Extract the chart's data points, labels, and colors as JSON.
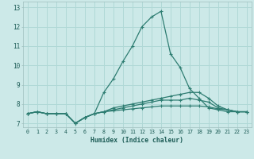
{
  "xlabel": "Humidex (Indice chaleur)",
  "background_color": "#cce9e8",
  "grid_color": "#b0d8d6",
  "line_color": "#2e7d72",
  "xlim": [
    -0.5,
    23.5
  ],
  "ylim": [
    6.8,
    13.3
  ],
  "yticks": [
    7,
    8,
    9,
    10,
    11,
    12,
    13
  ],
  "xticks": [
    0,
    1,
    2,
    3,
    4,
    5,
    6,
    7,
    8,
    9,
    10,
    11,
    12,
    13,
    14,
    15,
    16,
    17,
    18,
    19,
    20,
    21,
    22,
    23
  ],
  "series": [
    {
      "x": [
        0,
        1,
        2,
        3,
        4,
        5,
        6,
        7,
        8,
        9,
        10,
        11,
        12,
        13,
        14,
        15,
        16,
        17,
        18,
        19,
        20,
        21,
        22,
        23
      ],
      "y": [
        7.5,
        7.6,
        7.5,
        7.5,
        7.5,
        7.0,
        7.3,
        7.5,
        8.6,
        9.3,
        10.2,
        11.0,
        12.0,
        12.5,
        12.8,
        10.6,
        9.9,
        8.8,
        8.3,
        7.8,
        7.7,
        7.6,
        7.6,
        7.6
      ]
    },
    {
      "x": [
        0,
        1,
        2,
        3,
        4,
        5,
        6,
        7,
        8,
        9,
        10,
        11,
        12,
        13,
        14,
        15,
        16,
        17,
        18,
        19,
        20,
        21,
        22,
        23
      ],
      "y": [
        7.5,
        7.6,
        7.5,
        7.5,
        7.5,
        7.0,
        7.3,
        7.5,
        7.6,
        7.8,
        7.9,
        8.0,
        8.1,
        8.2,
        8.3,
        8.4,
        8.5,
        8.6,
        8.6,
        8.3,
        7.9,
        7.7,
        7.6,
        7.6
      ]
    },
    {
      "x": [
        0,
        1,
        2,
        3,
        4,
        5,
        6,
        7,
        8,
        9,
        10,
        11,
        12,
        13,
        14,
        15,
        16,
        17,
        18,
        19,
        20,
        21,
        22,
        23
      ],
      "y": [
        7.5,
        7.6,
        7.5,
        7.5,
        7.5,
        7.0,
        7.3,
        7.5,
        7.6,
        7.7,
        7.8,
        7.9,
        8.0,
        8.1,
        8.2,
        8.2,
        8.2,
        8.3,
        8.2,
        8.1,
        7.8,
        7.7,
        7.6,
        7.6
      ]
    },
    {
      "x": [
        0,
        1,
        2,
        3,
        4,
        5,
        6,
        7,
        8,
        9,
        10,
        11,
        12,
        13,
        14,
        15,
        16,
        17,
        18,
        19,
        20,
        21,
        22,
        23
      ],
      "y": [
        7.5,
        7.6,
        7.5,
        7.5,
        7.5,
        7.0,
        7.3,
        7.5,
        7.6,
        7.65,
        7.7,
        7.75,
        7.8,
        7.85,
        7.9,
        7.9,
        7.9,
        7.9,
        7.9,
        7.85,
        7.75,
        7.7,
        7.6,
        7.6
      ]
    }
  ]
}
